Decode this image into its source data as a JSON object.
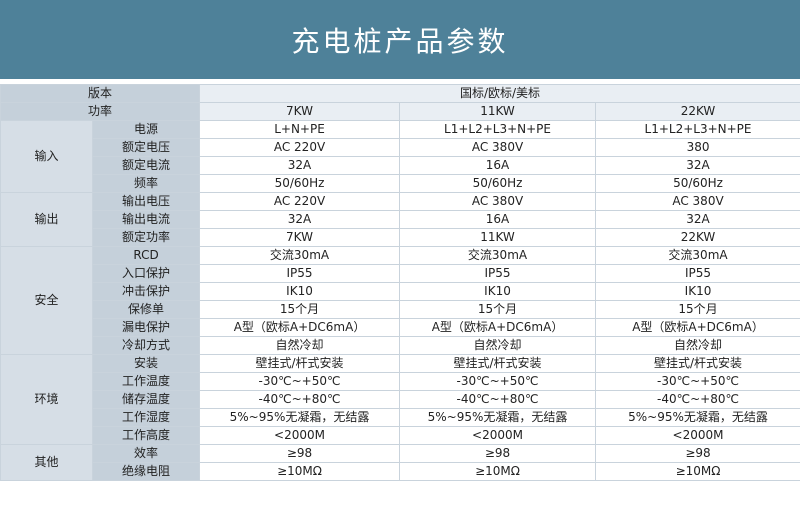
{
  "banner_title": "充电桩产品参数",
  "header": {
    "version_label": "版本",
    "version_value": "国标/欧标/美标",
    "power_label": "功率",
    "power_values": [
      "7KW",
      "11KW",
      "22KW"
    ]
  },
  "groups": [
    {
      "name": "输入",
      "rows": [
        {
          "label": "电源",
          "values": [
            "L+N+PE",
            "L1+L2+L3+N+PE",
            "L1+L2+L3+N+PE"
          ]
        },
        {
          "label": "额定电压",
          "values": [
            "AC 220V",
            "AC 380V",
            "380"
          ]
        },
        {
          "label": "额定电流",
          "values": [
            "32A",
            "16A",
            "32A"
          ]
        },
        {
          "label": "频率",
          "values": [
            "50/60Hz",
            "50/60Hz",
            "50/60Hz"
          ]
        }
      ]
    },
    {
      "name": "输出",
      "rows": [
        {
          "label": "输出电压",
          "values": [
            "AC 220V",
            "AC 380V",
            "AC 380V"
          ]
        },
        {
          "label": "输出电流",
          "values": [
            "32A",
            "16A",
            "32A"
          ]
        },
        {
          "label": "额定功率",
          "values": [
            "7KW",
            "11KW",
            "22KW"
          ]
        }
      ]
    },
    {
      "name": "安全",
      "rows": [
        {
          "label": "RCD",
          "values": [
            "交流30mA",
            "交流30mA",
            "交流30mA"
          ]
        },
        {
          "label": "入口保护",
          "values": [
            "IP55",
            "IP55",
            "IP55"
          ]
        },
        {
          "label": "冲击保护",
          "values": [
            "IK10",
            "IK10",
            "IK10"
          ]
        },
        {
          "label": "保修单",
          "values": [
            "15个月",
            "15个月",
            "15个月"
          ]
        },
        {
          "label": "漏电保护",
          "values": [
            "A型（欧标A+DC6mA）",
            "A型（欧标A+DC6mA）",
            "A型（欧标A+DC6mA）"
          ]
        },
        {
          "label": "冷却方式",
          "values": [
            "自然冷却",
            "自然冷却",
            "自然冷却"
          ]
        }
      ]
    },
    {
      "name": "环境",
      "rows": [
        {
          "label": "安装",
          "values": [
            "壁挂式/杆式安装",
            "壁挂式/杆式安装",
            "壁挂式/杆式安装"
          ]
        },
        {
          "label": "工作温度",
          "values": [
            "-30℃~+50℃",
            "-30℃~+50℃",
            "-30℃~+50℃"
          ]
        },
        {
          "label": "储存温度",
          "values": [
            "-40℃~+80℃",
            "-40℃~+80℃",
            "-40℃~+80℃"
          ]
        },
        {
          "label": "工作湿度",
          "values": [
            "5%~95%无凝霜，无结露",
            "5%~95%无凝霜，无结露",
            "5%~95%无凝霜，无结露"
          ]
        },
        {
          "label": "工作高度",
          "values": [
            "<2000M",
            "<2000M",
            "<2000M"
          ]
        }
      ]
    },
    {
      "name": "其他",
      "rows": [
        {
          "label": "效率",
          "values": [
            "≥98",
            "≥98",
            "≥98"
          ]
        },
        {
          "label": "绝缘电阻",
          "values": [
            "≥10MΩ",
            "≥10MΩ",
            "≥10MΩ"
          ]
        }
      ]
    }
  ]
}
